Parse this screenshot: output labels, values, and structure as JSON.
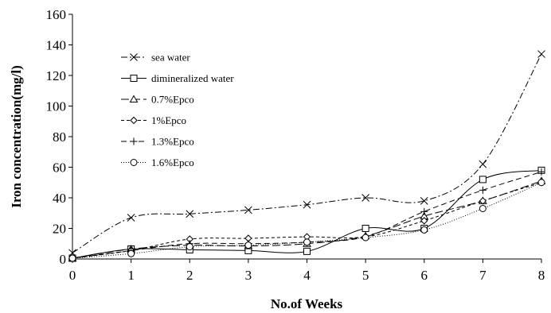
{
  "chart_data": {
    "type": "line",
    "xlabel": "No.of Weeks",
    "ylabel": "Iron concentration(mg/l)",
    "x": [
      0,
      1,
      2,
      3,
      4,
      5,
      6,
      7,
      8
    ],
    "xlim": [
      0,
      8
    ],
    "ylim": [
      0,
      160
    ],
    "yticks": [
      0,
      20,
      40,
      60,
      80,
      100,
      120,
      140,
      160
    ],
    "xticks": [
      0,
      1,
      2,
      3,
      4,
      5,
      6,
      7,
      8
    ],
    "grid": false,
    "legend_position": "top-left",
    "series": [
      {
        "name": "sea water",
        "marker": "x",
        "dash": "8,3,2,3",
        "values": [
          4,
          27,
          29.5,
          32,
          35.5,
          40,
          38,
          62,
          134
        ]
      },
      {
        "name": "dimineralized water",
        "marker": "square",
        "dash": "",
        "values": [
          0.5,
          6.5,
          6,
          5.5,
          5,
          20,
          20,
          52,
          58
        ]
      },
      {
        "name": "0.7%Epco",
        "marker": "triangle",
        "dash": "10,4",
        "values": [
          0.5,
          6.5,
          9,
          8.5,
          10,
          15,
          28,
          38,
          51
        ]
      },
      {
        "name": "1%Epco",
        "marker": "diamond",
        "dash": "4,3",
        "values": [
          0.5,
          5.5,
          13,
          13.5,
          14.5,
          14.5,
          25,
          38,
          50
        ]
      },
      {
        "name": "1.3%Epco",
        "marker": "plus",
        "dash": "7,4",
        "values": [
          0.5,
          5.5,
          10,
          10,
          11,
          14.5,
          31,
          45,
          57
        ]
      },
      {
        "name": "1.6%Epco",
        "marker": "circle",
        "dash": "1,2",
        "values": [
          0.5,
          3.5,
          8,
          9,
          11,
          14,
          19,
          33,
          50
        ]
      }
    ]
  }
}
